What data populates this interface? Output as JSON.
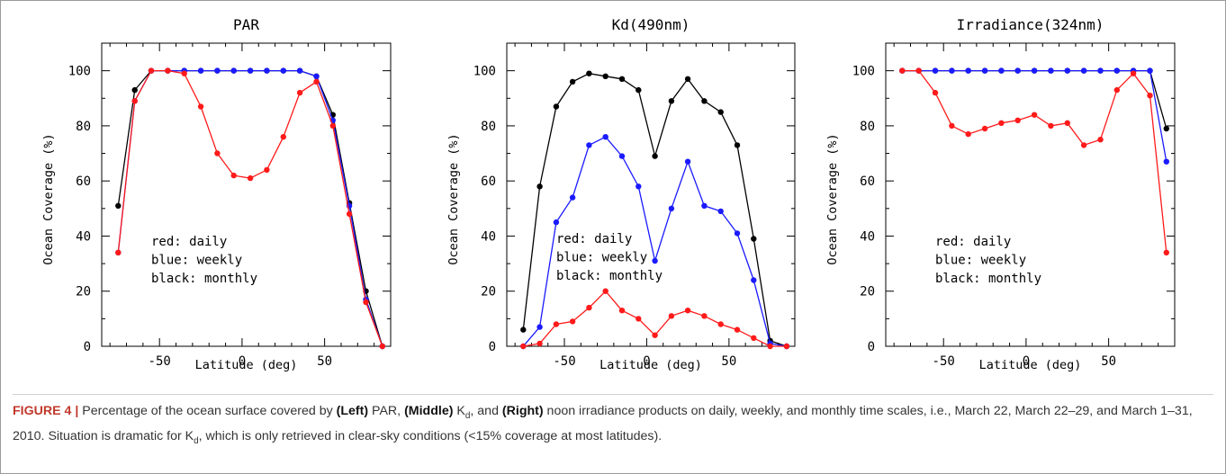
{
  "chart_data": [
    {
      "type": "line",
      "title": "PAR",
      "xlabel": "Latitude (deg)",
      "ylabel": "Ocean Coverage (%)",
      "xlim": [
        -85,
        90
      ],
      "ylim": [
        0,
        110
      ],
      "xticks": [
        -50,
        0,
        50
      ],
      "yticks": [
        0,
        20,
        40,
        60,
        80,
        100
      ],
      "annotations": [
        "red: daily",
        "blue: weekly",
        "black: monthly"
      ],
      "x": [
        -75,
        -65,
        -55,
        -45,
        -35,
        -25,
        -15,
        -5,
        5,
        15,
        25,
        35,
        45,
        55,
        65,
        75,
        85
      ],
      "series": [
        {
          "name": "monthly",
          "color": "#000000",
          "values": [
            51,
            93,
            100,
            100,
            100,
            100,
            100,
            100,
            100,
            100,
            100,
            100,
            98,
            84,
            52,
            20,
            0
          ]
        },
        {
          "name": "weekly",
          "color": "#1a1aff",
          "values": [
            34,
            89,
            100,
            100,
            100,
            100,
            100,
            100,
            100,
            100,
            100,
            100,
            98,
            82,
            51,
            17,
            0
          ]
        },
        {
          "name": "daily",
          "color": "#ff1a1a",
          "values": [
            34,
            89,
            100,
            100,
            99,
            87,
            70,
            62,
            61,
            64,
            76,
            92,
            96,
            80,
            48,
            16,
            0
          ]
        }
      ]
    },
    {
      "type": "line",
      "title": "Kd(490nm)",
      "xlabel": "Latitude (deg)",
      "ylabel": "Ocean Coverage (%)",
      "xlim": [
        -85,
        90
      ],
      "ylim": [
        0,
        110
      ],
      "xticks": [
        -50,
        0,
        50
      ],
      "yticks": [
        0,
        20,
        40,
        60,
        80,
        100
      ],
      "annotations": [
        "red: daily",
        "blue: weekly",
        "black: monthly"
      ],
      "x": [
        -75,
        -65,
        -55,
        -45,
        -35,
        -25,
        -15,
        -5,
        5,
        15,
        25,
        35,
        45,
        55,
        65,
        75,
        85
      ],
      "series": [
        {
          "name": "monthly",
          "color": "#000000",
          "values": [
            6,
            58,
            87,
            96,
            99,
            98,
            97,
            93,
            69,
            89,
            97,
            89,
            85,
            73,
            39,
            2,
            0
          ]
        },
        {
          "name": "weekly",
          "color": "#1a1aff",
          "values": [
            0,
            7,
            45,
            54,
            73,
            76,
            69,
            58,
            31,
            50,
            67,
            51,
            49,
            41,
            24,
            1,
            0
          ]
        },
        {
          "name": "daily",
          "color": "#ff1a1a",
          "values": [
            0,
            1,
            8,
            9,
            14,
            20,
            13,
            10,
            4,
            11,
            13,
            11,
            8,
            6,
            3,
            0,
            0
          ]
        }
      ]
    },
    {
      "type": "line",
      "title": "Irradiance(324nm)",
      "xlabel": "Latitude (deg)",
      "ylabel": "Ocean Coverage (%)",
      "xlim": [
        -85,
        90
      ],
      "ylim": [
        0,
        110
      ],
      "xticks": [
        -50,
        0,
        50
      ],
      "yticks": [
        0,
        20,
        40,
        60,
        80,
        100
      ],
      "annotations": [
        "red: daily",
        "blue: weekly",
        "black: monthly"
      ],
      "x": [
        -75,
        -65,
        -55,
        -45,
        -35,
        -25,
        -15,
        -5,
        5,
        15,
        25,
        35,
        45,
        55,
        65,
        75,
        85
      ],
      "series": [
        {
          "name": "monthly",
          "color": "#000000",
          "values": [
            100,
            100,
            100,
            100,
            100,
            100,
            100,
            100,
            100,
            100,
            100,
            100,
            100,
            100,
            100,
            100,
            79
          ]
        },
        {
          "name": "weekly",
          "color": "#1a1aff",
          "values": [
            100,
            100,
            100,
            100,
            100,
            100,
            100,
            100,
            100,
            100,
            100,
            100,
            100,
            100,
            100,
            100,
            67
          ]
        },
        {
          "name": "daily",
          "color": "#ff1a1a",
          "values": [
            100,
            100,
            92,
            80,
            77,
            79,
            81,
            82,
            84,
            80,
            81,
            73,
            75,
            93,
            99,
            91,
            34
          ]
        }
      ]
    }
  ],
  "caption": {
    "label": "FIGURE 4 |",
    "t1": " Percentage of the ocean surface covered by ",
    "left": "(Left)",
    "t2": " PAR, ",
    "middle": "(Middle)",
    "t3": " K",
    "sub1": "d",
    "t4": ", and ",
    "right": "(Right)",
    "t5": " noon irradiance products on daily, weekly, and monthly time scales, i.e., March 22, March 22–29, and March 1–31, 2010. Situation is dramatic for K",
    "sub2": "d",
    "t6": ", which is only retrieved in clear-sky conditions (<15% coverage at most latitudes)."
  }
}
